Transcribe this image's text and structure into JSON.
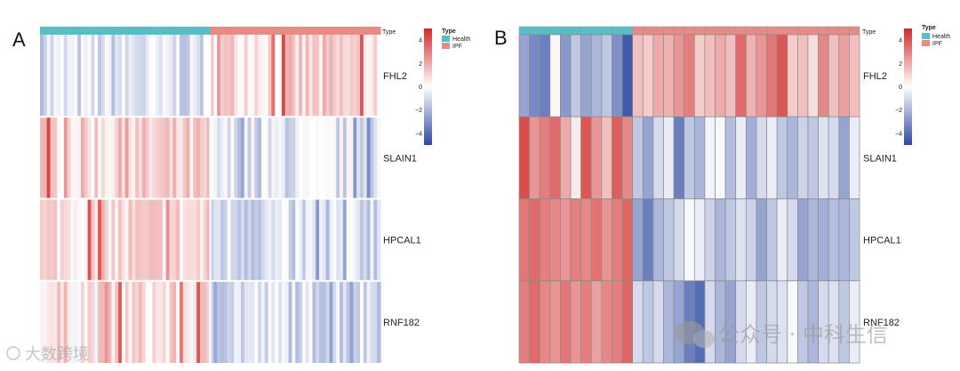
{
  "panels": [
    {
      "letter": "A",
      "annotation_label": "Type",
      "legend": {
        "title": "Type",
        "groups": [
          {
            "name": "Health",
            "color": "#55bfc8"
          },
          {
            "name": "IPF",
            "color": "#ea8a84"
          }
        ],
        "colorbar_ticks": [
          "4",
          "2",
          "0",
          "−2",
          "−4"
        ]
      }
    },
    {
      "letter": "B",
      "annotation_label": "Type",
      "legend": {
        "title": "Type",
        "groups": [
          {
            "name": "Health",
            "color": "#55bfc8"
          },
          {
            "name": "IPF",
            "color": "#ea8a84"
          }
        ],
        "colorbar_ticks": [
          "4",
          "2",
          "0",
          "−2",
          "−4"
        ]
      }
    }
  ],
  "chart_data": [
    {
      "type": "heatmap",
      "title": "A",
      "rows": [
        "FHL2",
        "SLAIN1",
        "HPCAL1",
        "RNF182"
      ],
      "column_groups": [
        {
          "name": "Health",
          "count": 50
        },
        {
          "name": "IPF",
          "count": 50
        }
      ],
      "row_means": {
        "Health": [
          -0.8,
          0.9,
          0.8,
          0.7
        ],
        "IPF": [
          0.9,
          -0.7,
          -0.9,
          -0.8
        ]
      },
      "color_scale": {
        "min": -5,
        "max": 5,
        "low": "#2b48a3",
        "mid": "#ffffff",
        "high": "#d42a2a"
      },
      "cell_borders": false
    },
    {
      "type": "heatmap",
      "title": "B",
      "rows": [
        "FHL2",
        "SLAIN1",
        "HPCAL1",
        "RNF182"
      ],
      "columns": 33,
      "column_groups": [
        {
          "name": "Health",
          "count": 11
        },
        {
          "name": "IPF",
          "count": 22
        }
      ],
      "values": [
        [
          -2.5,
          -3.2,
          -3.5,
          0.2,
          -2.8,
          -1.5,
          -2.5,
          -2.0,
          -1.5,
          -3.0,
          -4.5,
          1.5,
          1.2,
          2.0,
          1.8,
          2.5,
          3.0,
          1.2,
          1.5,
          2.0,
          1.5,
          3.5,
          1.8,
          2.5,
          3.2,
          4.0,
          1.2,
          1.5,
          0.8,
          2.8,
          1.5,
          2.2,
          1.5
        ],
        [
          4.2,
          2.5,
          3.0,
          3.5,
          2.0,
          0.5,
          4.0,
          2.5,
          1.5,
          3.8,
          2.8,
          -1.5,
          -2.5,
          -1.0,
          -0.5,
          -3.5,
          -1.5,
          -2.0,
          -0.3,
          -0.2,
          -1.8,
          -0.5,
          -2.2,
          -1.0,
          -0.5,
          -1.5,
          -2.0,
          -1.2,
          -1.5,
          -0.8,
          -1.0,
          -2.5,
          -0.5
        ],
        [
          3.2,
          3.5,
          3.0,
          2.8,
          2.5,
          3.0,
          2.8,
          3.3,
          2.5,
          3.0,
          3.6,
          -2.5,
          -3.5,
          -2.0,
          -1.5,
          -1.0,
          -0.2,
          -0.5,
          -1.2,
          -2.0,
          -1.5,
          -0.8,
          -1.2,
          -2.5,
          -1.5,
          -0.5,
          -1.0,
          -2.5,
          -2.0,
          -2.2,
          -1.8,
          -2.0,
          -1.5
        ],
        [
          3.0,
          3.5,
          2.8,
          2.5,
          3.2,
          2.5,
          3.0,
          2.2,
          2.8,
          3.0,
          3.6,
          -1.0,
          -1.5,
          -1.0,
          -2.0,
          -2.5,
          -3.5,
          -4.0,
          -1.0,
          -2.0,
          -2.5,
          -1.0,
          -0.5,
          -1.5,
          -1.0,
          -0.8,
          -0.2,
          -1.5,
          -2.0,
          -1.0,
          -0.8,
          -1.5,
          -0.5
        ]
      ],
      "color_scale": {
        "min": -5,
        "max": 5,
        "low": "#2b48a3",
        "mid": "#ffffff",
        "high": "#d42a2a"
      },
      "cell_borders": true
    }
  ],
  "watermarks": {
    "left": "大数跨境",
    "right": "公众号 · 中科生信"
  }
}
